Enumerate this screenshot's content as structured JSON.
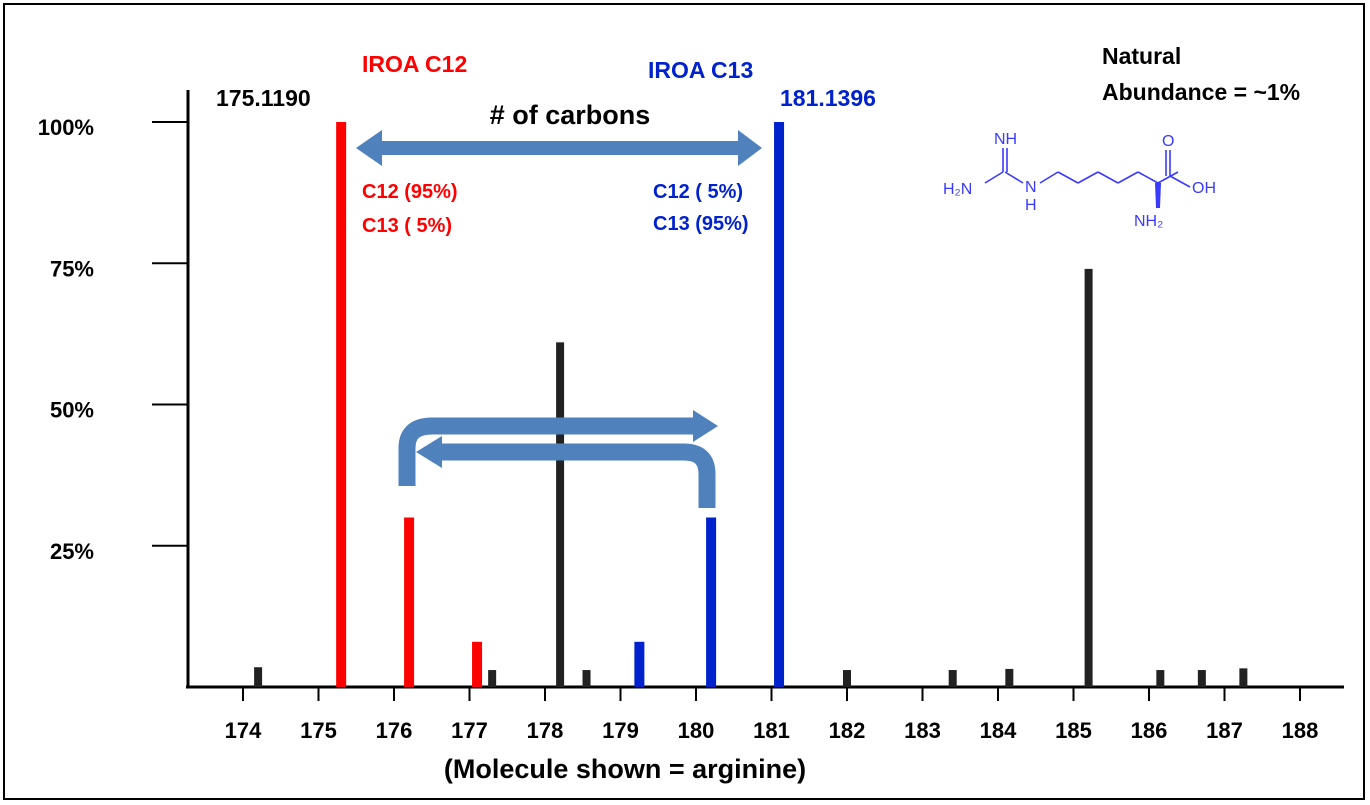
{
  "colors": {
    "c12": "#ff0000",
    "c13": "#0022cc",
    "natural": "#222222",
    "arrow": "#4f81bd",
    "text": "#000000"
  },
  "chart_data": {
    "type": "bar",
    "xlabel": "(Molecule shown = arginine)",
    "x_ticks": [
      "174",
      "175",
      "176",
      "177",
      "178",
      "179",
      "180",
      "181",
      "182",
      "183",
      "184",
      "185",
      "186",
      "187",
      "188"
    ],
    "xlim": [
      173.2,
      188.5
    ],
    "y_ticks": [
      "25%",
      "50%",
      "75%",
      "100%"
    ],
    "ylim": [
      0,
      100
    ],
    "grid": false,
    "series": [
      {
        "group": "c12",
        "points": [
          {
            "x": 175.3,
            "y": 100
          },
          {
            "x": 176.2,
            "y": 30
          },
          {
            "x": 177.1,
            "y": 8
          }
        ]
      },
      {
        "group": "c13",
        "points": [
          {
            "x": 179.25,
            "y": 8
          },
          {
            "x": 180.2,
            "y": 30
          },
          {
            "x": 181.1,
            "y": 100
          }
        ]
      },
      {
        "group": "natural",
        "points": [
          {
            "x": 174.2,
            "y": 3.5
          },
          {
            "x": 177.3,
            "y": 3
          },
          {
            "x": 178.2,
            "y": 61
          },
          {
            "x": 178.55,
            "y": 3
          },
          {
            "x": 182.0,
            "y": 3
          },
          {
            "x": 183.4,
            "y": 3
          },
          {
            "x": 184.15,
            "y": 3.2
          },
          {
            "x": 185.2,
            "y": 74
          },
          {
            "x": 186.15,
            "y": 3
          },
          {
            "x": 186.7,
            "y": 3
          },
          {
            "x": 187.25,
            "y": 3.3
          }
        ]
      }
    ],
    "annotations": {
      "iroa_c12_title": "IROA C12",
      "iroa_c13_title": "IROA C13",
      "mass_c12": "175.1190",
      "mass_c13": "181.1396",
      "carbons_label": "# of carbons",
      "c12_line1": "C12 (95%)",
      "c12_line2": "C13 ( 5%)",
      "c13_line1": "C12 ( 5%)",
      "c13_line2": "C13 (95%)",
      "natural_line1": "Natural",
      "natural_line2": "Abundance = ~1%"
    }
  },
  "molecule": {
    "name": "arginine",
    "labels": {
      "imine": "NH",
      "amine_left": "H₂N",
      "nh_chain": "N",
      "nh_chain_h": "H",
      "carbonyl_o": "O",
      "hydroxyl": "OH",
      "alpha_amine": "NH₂"
    }
  }
}
